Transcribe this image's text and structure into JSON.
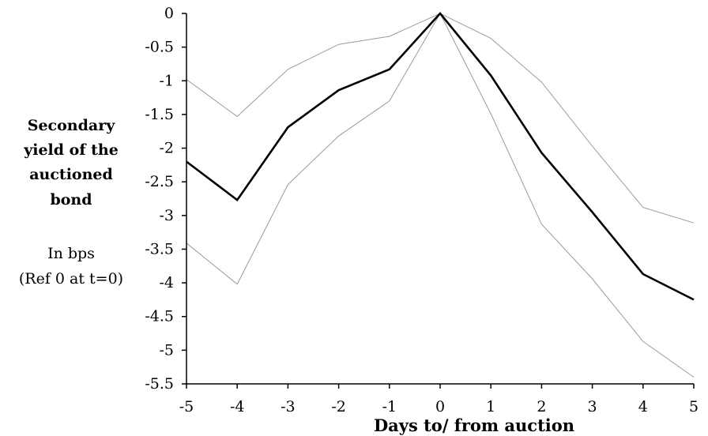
{
  "chart_data": {
    "type": "line",
    "x": [
      -5,
      -4,
      -3,
      -2,
      -1,
      0,
      1,
      2,
      3,
      4,
      5
    ],
    "xtick_labels": [
      "-5",
      "-4",
      "-3",
      "-2",
      "-1",
      "0",
      "1",
      "2",
      "3",
      "4",
      "5"
    ],
    "ytick_labels": [
      "0",
      "-0.5",
      "-1",
      "-1.5",
      "-2",
      "-2.5",
      "-3",
      "-3.5",
      "-4",
      "-4.5",
      "-5",
      "-5.5"
    ],
    "ylim": [
      -5.5,
      0
    ],
    "xlabel": "Days to/ from auction",
    "ylabel_lines": [
      "Secondary",
      "yield of the",
      "auctioned",
      "bond"
    ],
    "ylabel_sub_lines": [
      "In bps",
      "(Ref 0 at t=0)"
    ],
    "grid": false,
    "legend": "none",
    "series": [
      {
        "style": "thick",
        "color": "#000000",
        "values": [
          -2.2,
          -2.77,
          -1.69,
          -1.14,
          -0.83,
          0,
          -0.92,
          -2.07,
          -2.95,
          -3.87,
          -4.25
        ]
      },
      {
        "style": "thin",
        "color": "#9a9a9a",
        "values": [
          -0.98,
          -1.53,
          -0.83,
          -0.46,
          -0.34,
          0,
          -0.37,
          -1.02,
          -1.97,
          -2.88,
          -3.11
        ]
      },
      {
        "style": "thin",
        "color": "#9a9a9a",
        "values": [
          -3.41,
          -4.02,
          -2.54,
          -1.82,
          -1.3,
          0,
          -1.49,
          -3.13,
          -3.94,
          -4.87,
          -5.4
        ]
      }
    ]
  }
}
